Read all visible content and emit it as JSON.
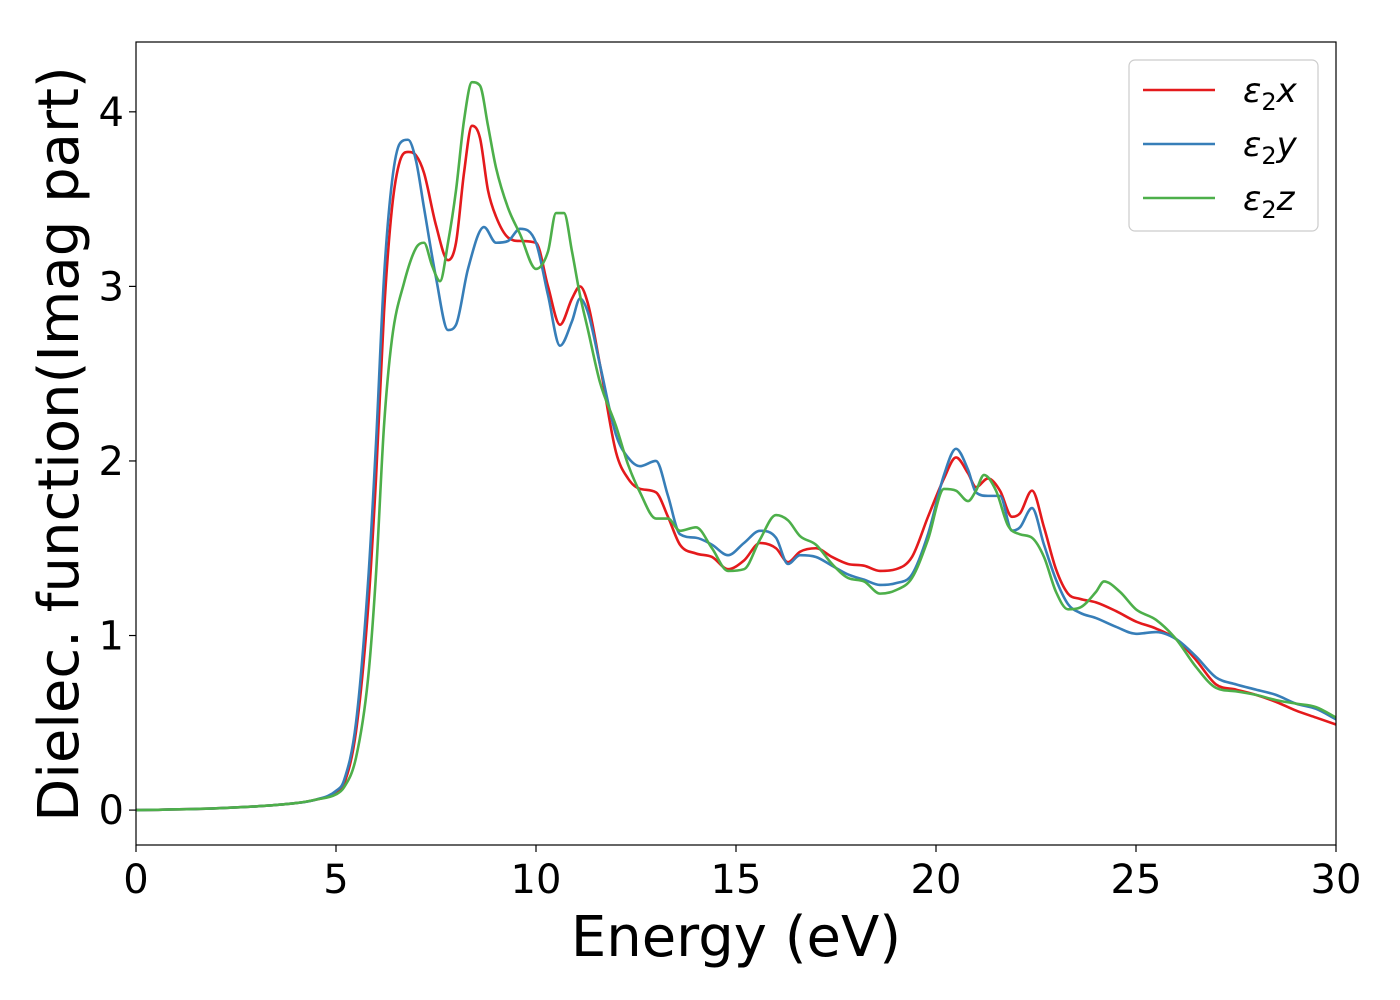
{
  "chart_data": {
    "type": "line",
    "title": "",
    "xlabel": "Energy (eV)",
    "ylabel": "Dielec. function(Imag part)",
    "xlim": [
      0,
      30
    ],
    "ylim": [
      -0.2,
      4.4
    ],
    "xticks": [
      0,
      5,
      10,
      15,
      20,
      25,
      30
    ],
    "xtick_labels": [
      "0",
      "5",
      "10",
      "15",
      "20",
      "25",
      "30"
    ],
    "yticks": [
      0,
      1,
      2,
      3,
      4
    ],
    "ytick_labels": [
      "0",
      "1",
      "2",
      "3",
      "4"
    ],
    "grid": false,
    "legend_position": "top-right",
    "series": [
      {
        "name": "ε2x",
        "legend_main": "ε",
        "legend_sub": "2",
        "legend_suffix": "x",
        "color": "#e41a1c",
        "x": [
          0,
          2,
          4,
          4.5,
          5,
          5.2,
          5.5,
          5.8,
          6.0,
          6.2,
          6.4,
          6.6,
          6.8,
          7.0,
          7.2,
          7.5,
          7.8,
          8.0,
          8.2,
          8.4,
          8.6,
          8.8,
          9.0,
          9.3,
          9.6,
          10.0,
          10.3,
          10.6,
          10.9,
          11.1,
          11.3,
          11.6,
          12.0,
          12.3,
          12.6,
          13.0,
          13.3,
          13.6,
          14.0,
          14.4,
          14.8,
          15.2,
          15.6,
          16.0,
          16.3,
          16.6,
          17.0,
          17.4,
          17.8,
          18.2,
          18.6,
          19.0,
          19.4,
          19.8,
          20.2,
          20.5,
          20.8,
          21.0,
          21.3,
          21.6,
          21.9,
          22.1,
          22.4,
          22.7,
          23.0,
          23.3,
          23.6,
          24.0,
          24.5,
          25.0,
          25.5,
          26.0,
          26.5,
          27.0,
          27.5,
          28.0,
          28.5,
          29.0,
          29.5,
          30.0
        ],
        "values": [
          0.0,
          0.01,
          0.04,
          0.06,
          0.1,
          0.15,
          0.45,
          1.15,
          1.9,
          2.85,
          3.45,
          3.72,
          3.77,
          3.75,
          3.65,
          3.35,
          3.15,
          3.25,
          3.65,
          3.92,
          3.85,
          3.55,
          3.4,
          3.28,
          3.26,
          3.25,
          3.0,
          2.78,
          2.93,
          3.0,
          2.9,
          2.55,
          2.05,
          1.9,
          1.84,
          1.82,
          1.68,
          1.52,
          1.47,
          1.45,
          1.38,
          1.43,
          1.53,
          1.5,
          1.42,
          1.48,
          1.5,
          1.45,
          1.41,
          1.4,
          1.37,
          1.38,
          1.45,
          1.68,
          1.9,
          2.02,
          1.93,
          1.85,
          1.9,
          1.83,
          1.68,
          1.7,
          1.83,
          1.62,
          1.38,
          1.24,
          1.21,
          1.19,
          1.14,
          1.08,
          1.04,
          0.98,
          0.86,
          0.72,
          0.69,
          0.66,
          0.62,
          0.57,
          0.53,
          0.49
        ]
      },
      {
        "name": "ε2y",
        "legend_main": "ε",
        "legend_sub": "2",
        "legend_suffix": "y",
        "color": "#377eb8",
        "x": [
          0,
          2,
          4,
          4.5,
          5,
          5.2,
          5.5,
          5.8,
          6.0,
          6.2,
          6.4,
          6.6,
          6.8,
          7.0,
          7.2,
          7.5,
          7.8,
          8.0,
          8.3,
          8.7,
          9.0,
          9.3,
          9.6,
          10.0,
          10.3,
          10.6,
          10.9,
          11.1,
          11.3,
          11.6,
          12.0,
          12.3,
          12.6,
          13.0,
          13.3,
          13.6,
          14.0,
          14.4,
          14.8,
          15.2,
          15.6,
          16.0,
          16.3,
          16.6,
          17.0,
          17.4,
          17.8,
          18.2,
          18.6,
          19.0,
          19.4,
          19.8,
          20.2,
          20.5,
          20.8,
          21.0,
          21.3,
          21.6,
          21.9,
          22.1,
          22.4,
          22.7,
          23.0,
          23.3,
          23.6,
          24.0,
          24.5,
          25.0,
          25.5,
          26.0,
          26.5,
          27.0,
          27.5,
          28.0,
          28.5,
          29.0,
          29.5,
          30.0
        ],
        "values": [
          0.0,
          0.01,
          0.04,
          0.06,
          0.11,
          0.17,
          0.5,
          1.3,
          2.1,
          3.05,
          3.6,
          3.82,
          3.84,
          3.72,
          3.45,
          3.05,
          2.75,
          2.78,
          3.1,
          3.34,
          3.25,
          3.26,
          3.33,
          3.25,
          2.95,
          2.66,
          2.8,
          2.93,
          2.85,
          2.55,
          2.15,
          2.02,
          1.97,
          2.0,
          1.8,
          1.58,
          1.56,
          1.52,
          1.46,
          1.53,
          1.6,
          1.56,
          1.41,
          1.46,
          1.45,
          1.4,
          1.35,
          1.32,
          1.29,
          1.3,
          1.35,
          1.58,
          1.92,
          2.07,
          1.95,
          1.82,
          1.8,
          1.8,
          1.6,
          1.62,
          1.73,
          1.52,
          1.32,
          1.18,
          1.13,
          1.1,
          1.05,
          1.01,
          1.02,
          0.98,
          0.88,
          0.76,
          0.72,
          0.69,
          0.66,
          0.61,
          0.58,
          0.52
        ]
      },
      {
        "name": "ε2z",
        "legend_main": "ε",
        "legend_sub": "2",
        "legend_suffix": "z",
        "color": "#4daf4a",
        "x": [
          0,
          2,
          4,
          4.5,
          5,
          5.2,
          5.5,
          5.8,
          6.0,
          6.2,
          6.4,
          6.7,
          7.0,
          7.2,
          7.4,
          7.6,
          7.8,
          8.0,
          8.2,
          8.4,
          8.6,
          8.8,
          9.0,
          9.3,
          9.6,
          10.0,
          10.3,
          10.5,
          10.7,
          10.9,
          11.1,
          11.3,
          11.6,
          12.0,
          12.3,
          12.6,
          13.0,
          13.3,
          13.6,
          14.0,
          14.4,
          14.8,
          15.2,
          15.6,
          16.0,
          16.3,
          16.6,
          17.0,
          17.4,
          17.8,
          18.2,
          18.6,
          19.0,
          19.4,
          19.8,
          20.2,
          20.5,
          20.8,
          21.0,
          21.2,
          21.5,
          21.8,
          22.1,
          22.4,
          22.7,
          23.0,
          23.3,
          23.6,
          24.0,
          24.2,
          24.6,
          25.0,
          25.5,
          26.0,
          26.5,
          27.0,
          27.5,
          28.0,
          28.5,
          29.0,
          29.5,
          30.0
        ],
        "values": [
          0.0,
          0.01,
          0.04,
          0.06,
          0.09,
          0.13,
          0.3,
          0.75,
          1.35,
          2.2,
          2.7,
          3.02,
          3.22,
          3.25,
          3.12,
          3.03,
          3.25,
          3.55,
          3.95,
          4.17,
          4.15,
          3.92,
          3.68,
          3.45,
          3.3,
          3.1,
          3.2,
          3.42,
          3.42,
          3.2,
          2.95,
          2.75,
          2.45,
          2.2,
          1.98,
          1.82,
          1.67,
          1.67,
          1.6,
          1.62,
          1.5,
          1.37,
          1.38,
          1.55,
          1.69,
          1.66,
          1.57,
          1.52,
          1.41,
          1.33,
          1.31,
          1.24,
          1.26,
          1.33,
          1.55,
          1.84,
          1.83,
          1.77,
          1.83,
          1.92,
          1.83,
          1.63,
          1.58,
          1.56,
          1.45,
          1.25,
          1.15,
          1.16,
          1.25,
          1.31,
          1.25,
          1.15,
          1.09,
          0.98,
          0.82,
          0.7,
          0.68,
          0.66,
          0.63,
          0.61,
          0.59,
          0.53
        ]
      }
    ]
  }
}
